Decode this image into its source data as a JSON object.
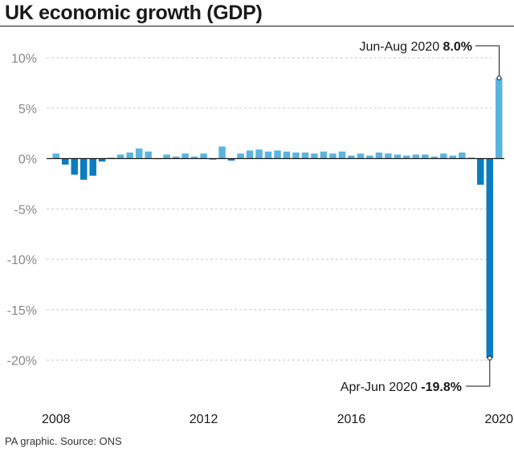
{
  "title": "UK economic growth (GDP)",
  "source": "PA graphic. Source: ONS",
  "chart_data": {
    "type": "bar",
    "title": "UK economic growth (GDP)",
    "xlabel": "",
    "ylabel": "",
    "ylim": [
      -20,
      10
    ],
    "yticks": [
      {
        "value": 10,
        "label": "10%"
      },
      {
        "value": 5,
        "label": "5%"
      },
      {
        "value": 0,
        "label": "0%"
      },
      {
        "value": -5,
        "label": "-5%"
      },
      {
        "value": -10,
        "label": "-10%"
      },
      {
        "value": -15,
        "label": "-15%"
      },
      {
        "value": -20,
        "label": "-20%"
      }
    ],
    "xticks": [
      {
        "year": 2008,
        "label": "2008"
      },
      {
        "year": 2012,
        "label": "2012"
      },
      {
        "year": 2016,
        "label": "2016"
      },
      {
        "year": 2020,
        "label": "2020"
      }
    ],
    "x_start_year": 2008.0,
    "x_period_years": 0.25,
    "grid": true,
    "colors": {
      "positive": "#5bb4df",
      "negative": "#0b7dbf",
      "grid": "#c8c8c8",
      "axis": "#1a1a1a"
    },
    "values": [
      0.5,
      -0.6,
      -1.6,
      -2.1,
      -1.7,
      -0.3,
      0.1,
      0.4,
      0.6,
      1.0,
      0.7,
      0.0,
      0.4,
      0.2,
      0.5,
      0.2,
      0.5,
      -0.1,
      1.2,
      -0.2,
      0.5,
      0.8,
      0.9,
      0.7,
      0.8,
      0.7,
      0.6,
      0.6,
      0.5,
      0.7,
      0.5,
      0.7,
      0.3,
      0.5,
      0.3,
      0.6,
      0.5,
      0.4,
      0.3,
      0.4,
      0.4,
      0.2,
      0.5,
      0.3,
      0.6,
      0.1,
      -2.6,
      -19.8
    ],
    "final_value": 8.0,
    "annotations": [
      {
        "prefix": "Jun-Aug 2020 ",
        "value_text": "8.0%",
        "value": 8.0
      },
      {
        "prefix": "Apr-Jun 2020 ",
        "value_text": "-19.8%",
        "value": -19.8
      }
    ]
  }
}
